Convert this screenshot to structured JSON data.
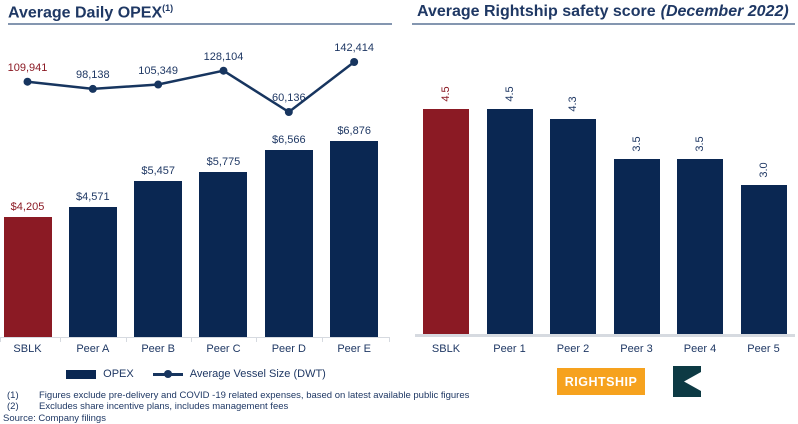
{
  "colors": {
    "navy_bar": "#0A2752",
    "highlight_red": "#8B1A24",
    "text_navy": "#1F3864",
    "line_navy": "#17355F",
    "axis_gray": "#D6DAE0",
    "rule_gray": "#8496B0",
    "rightship_orange": "#F6A21E",
    "mark_teal": "#0D3A44"
  },
  "chart_data": [
    {
      "type": "bar+line",
      "title": "Average Daily OPEX",
      "title_note": "(1)",
      "categories": [
        "SBLK",
        "Peer A",
        "Peer B",
        "Peer C",
        "Peer D",
        "Peer E"
      ],
      "highlight_index": 0,
      "series": [
        {
          "name": "OPEX",
          "type": "bar",
          "values": [
            4205,
            4571,
            5457,
            5775,
            6566,
            6876
          ],
          "labels": [
            "$4,205",
            "$4,571",
            "$5,457",
            "$5,775",
            "$6,566",
            "$6,876"
          ]
        },
        {
          "name": "Average Vessel Size (DWT)",
          "type": "line",
          "values": [
            109941,
            98138,
            105349,
            128104,
            60136,
            142414
          ],
          "labels": [
            "109,941",
            "98,138",
            "105,349",
            "128,104",
            "60,136",
            "142,414"
          ]
        }
      ],
      "legend_position": "bottom",
      "grid": false
    },
    {
      "type": "bar",
      "title": "Average Rightship safety score",
      "subtitle": "(December 2022)",
      "categories": [
        "SBLK",
        "Peer 1",
        "Peer 2",
        "Peer 3",
        "Peer 4",
        "Peer 5"
      ],
      "values": [
        4.5,
        4.5,
        4.3,
        3.5,
        3.5,
        3.0
      ],
      "labels": [
        "4.5",
        "4.5",
        "4.3",
        "3.5",
        "3.5",
        "3.0"
      ],
      "highlight_index": 0,
      "value_label_rotation": -90,
      "grid": false
    }
  ],
  "footnotes": [
    {
      "ref": "(1)",
      "text": "Figures exclude pre-delivery and COVID -19 related expenses, based on latest available public figures"
    },
    {
      "ref": "(2)",
      "text": "Excludes share incentive plans, includes management fees"
    }
  ],
  "source": "Source: Company filings",
  "logos": {
    "rightship_wordmark": "RIGHTSHIP"
  }
}
